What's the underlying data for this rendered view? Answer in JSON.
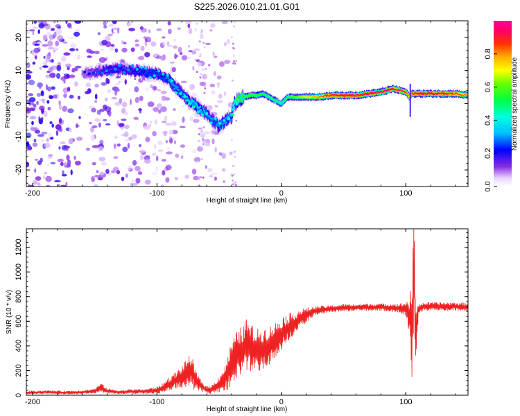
{
  "figure_title": "S225.2026.010.21.01.G01",
  "colors": {
    "snr_line": "#ee2222",
    "frame": "#000000"
  },
  "chart_data": [
    {
      "type": "heatmap",
      "title": "S225.2026.010.21.01.G01",
      "xlabel": "Height of straight line (km)",
      "ylabel": "Frequency (Hz)",
      "xlim": [
        -205,
        150
      ],
      "ylim": [
        -25,
        25
      ],
      "xticks": [
        -200,
        -100,
        0,
        100
      ],
      "yticks": [
        -20,
        -10,
        0,
        10,
        20
      ],
      "colorbar": {
        "label": "Normalized spectral amplitude",
        "range": [
          0,
          1
        ],
        "ticks": [
          0.0,
          0.2,
          0.4,
          0.6,
          0.8
        ]
      },
      "ridge": {
        "x": [
          -160,
          -150,
          -140,
          -130,
          -120,
          -110,
          -100,
          -95,
          -90,
          -85,
          -80,
          -75,
          -70,
          -65,
          -60,
          -55,
          -50,
          -45,
          -40,
          -38,
          -35,
          -30,
          -25,
          -20,
          -15,
          -10,
          -5,
          0,
          5,
          10,
          20,
          30,
          40,
          50,
          60,
          70,
          80,
          85,
          90,
          95,
          100,
          103,
          105,
          110,
          120,
          130,
          140,
          150
        ],
        "y": [
          9,
          9.5,
          10,
          10.5,
          10,
          9.5,
          9,
          8,
          7,
          5,
          3,
          1,
          0,
          -2,
          -3,
          -5,
          -7,
          -5,
          -4,
          0,
          1,
          2,
          2.5,
          2.5,
          3,
          2,
          1,
          0,
          2,
          2,
          2,
          2,
          2.5,
          2.5,
          2.5,
          3,
          3.5,
          4,
          4.5,
          4,
          3.5,
          2,
          3,
          3,
          3,
          3,
          3,
          2.5
        ],
        "amplitude": [
          0.1,
          0.15,
          0.2,
          0.2,
          0.2,
          0.25,
          0.25,
          0.25,
          0.3,
          0.3,
          0.3,
          0.35,
          0.35,
          0.35,
          0.3,
          0.3,
          0.3,
          0.3,
          0.35,
          0.45,
          0.5,
          0.55,
          0.55,
          0.55,
          0.55,
          0.5,
          0.5,
          0.45,
          0.55,
          0.6,
          0.7,
          0.8,
          0.9,
          0.95,
          0.95,
          0.95,
          0.95,
          0.95,
          0.9,
          0.9,
          0.85,
          0.8,
          0.85,
          0.95,
          0.95,
          0.9,
          0.85,
          0.8
        ]
      },
      "noise_region_x": [
        -205,
        -40
      ]
    },
    {
      "type": "line",
      "title": "",
      "xlabel": "Height of straight line (km)",
      "ylabel": "SNR (10 * v/v)",
      "xlim": [
        -205,
        150
      ],
      "ylim": [
        0,
        1350
      ],
      "xticks": [
        -200,
        -100,
        0,
        100
      ],
      "yticks": [
        0,
        200,
        400,
        600,
        800,
        1000,
        1200
      ],
      "series": [
        {
          "name": "SNR",
          "x": [
            -205,
            -190,
            -175,
            -160,
            -150,
            -145,
            -140,
            -130,
            -120,
            -110,
            -100,
            -95,
            -90,
            -85,
            -80,
            -75,
            -72,
            -70,
            -65,
            -60,
            -55,
            -50,
            -45,
            -40,
            -35,
            -30,
            -28,
            -25,
            -20,
            -15,
            -10,
            -5,
            0,
            5,
            10,
            15,
            20,
            25,
            30,
            40,
            50,
            60,
            70,
            80,
            90,
            95,
            100,
            103,
            105,
            106,
            107,
            108,
            110,
            115,
            120,
            130,
            140,
            150
          ],
          "values": [
            20,
            25,
            22,
            25,
            35,
            60,
            35,
            25,
            30,
            30,
            40,
            60,
            90,
            120,
            150,
            190,
            210,
            130,
            80,
            40,
            50,
            90,
            140,
            260,
            330,
            380,
            420,
            380,
            360,
            380,
            400,
            440,
            500,
            540,
            580,
            620,
            650,
            675,
            690,
            700,
            710,
            710,
            715,
            715,
            710,
            705,
            700,
            650,
            500,
            900,
            1000,
            400,
            700,
            720,
            720,
            720,
            720,
            715
          ],
          "oscillation_amplitude": [
            15,
            15,
            15,
            15,
            20,
            40,
            20,
            15,
            20,
            20,
            30,
            40,
            60,
            70,
            90,
            120,
            130,
            90,
            50,
            30,
            40,
            70,
            110,
            190,
            200,
            200,
            220,
            200,
            180,
            170,
            160,
            150,
            140,
            120,
            100,
            80,
            60,
            45,
            35,
            30,
            30,
            30,
            30,
            30,
            35,
            40,
            60,
            150,
            400,
            440,
            440,
            300,
            50,
            35,
            35,
            35,
            35,
            35
          ]
        }
      ]
    }
  ]
}
